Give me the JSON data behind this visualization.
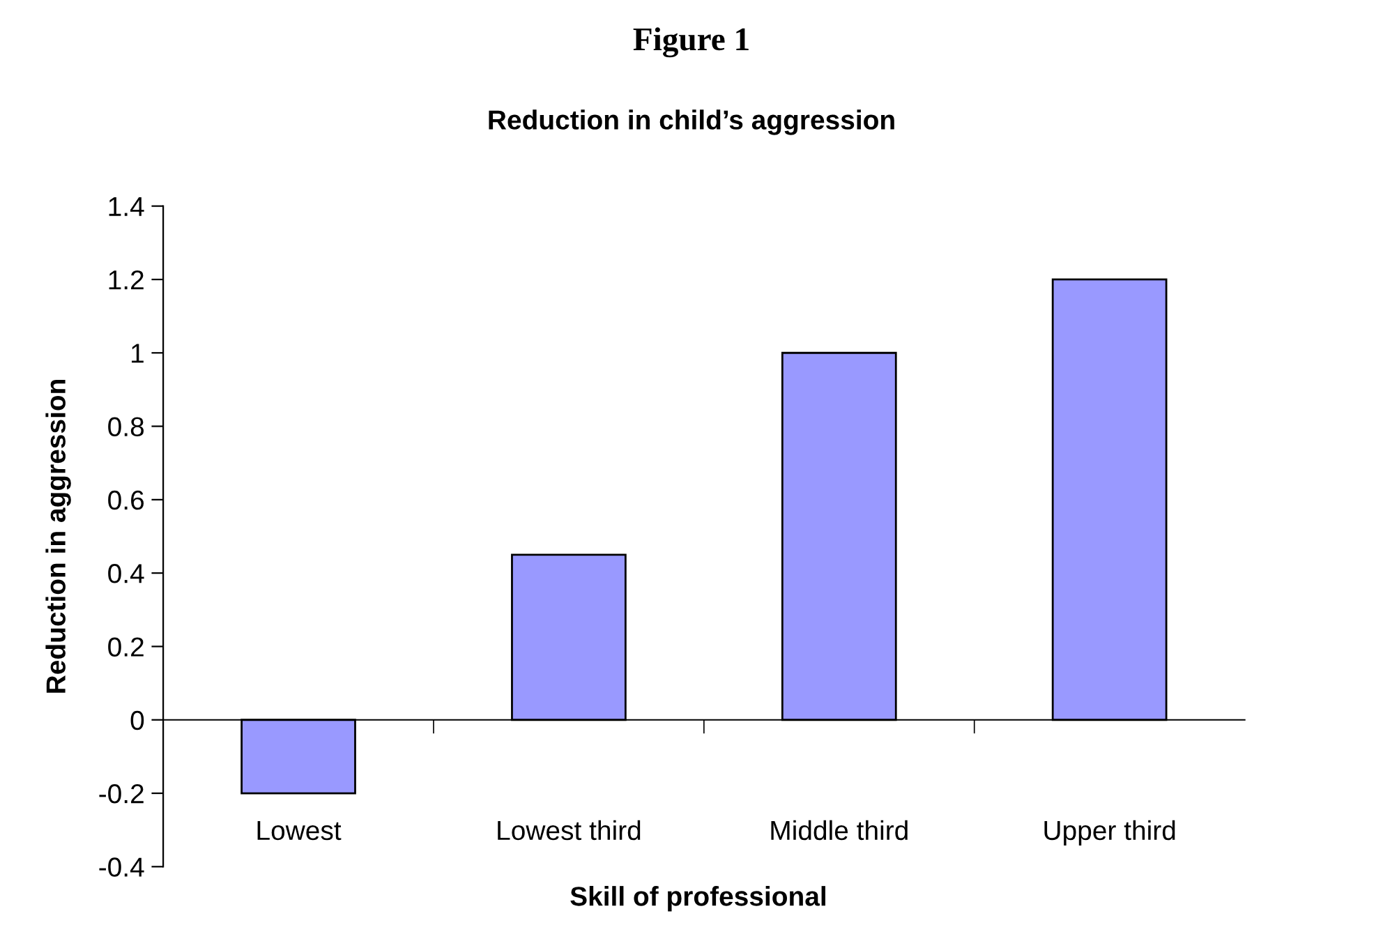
{
  "chart_data": {
    "type": "bar",
    "title": "Figure 1",
    "subtitle": "Reduction in child’s aggression",
    "xlabel": "Skill of professional",
    "ylabel": "Reduction in aggression",
    "categories": [
      "Lowest",
      "Lowest third",
      "Middle third",
      "Upper third"
    ],
    "values": [
      -0.2,
      0.45,
      1.0,
      1.2
    ],
    "color": "#9999ff",
    "ylim": [
      -0.4,
      1.4
    ],
    "yticks": [
      {
        "value": -0.4,
        "label": "-0.4"
      },
      {
        "value": -0.2,
        "label": "-0.2"
      },
      0,
      0.2,
      0.4,
      0.6,
      0.8,
      1,
      1.2,
      1.4
    ],
    "legend": false
  }
}
